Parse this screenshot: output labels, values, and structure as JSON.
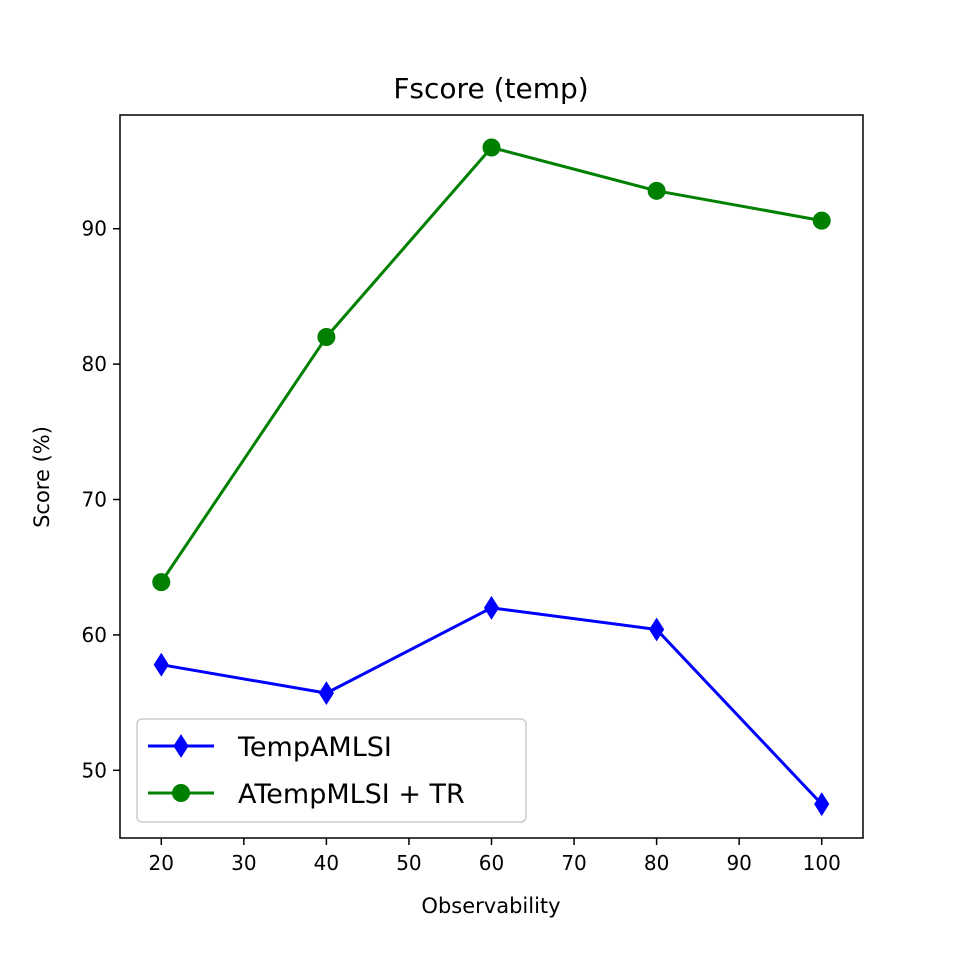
{
  "chart_data": {
    "type": "line",
    "title": "Fscore (temp)",
    "xlabel": "Observability",
    "ylabel": "Score (%)",
    "xlim": [
      15,
      105
    ],
    "ylim": [
      45,
      98.4
    ],
    "xticks": [
      20,
      30,
      40,
      50,
      60,
      70,
      80,
      90,
      100
    ],
    "yticks": [
      50,
      60,
      70,
      80,
      90
    ],
    "x": [
      20,
      40,
      60,
      80,
      100
    ],
    "grid": false,
    "legend_position": "lower-left",
    "series": [
      {
        "name": "TempAMLSI",
        "color": "#0000ff",
        "marker": "thin-diamond",
        "values": [
          57.8,
          55.7,
          62.0,
          60.4,
          47.5
        ]
      },
      {
        "name": "ATempMLSI + TR",
        "color": "#008000",
        "marker": "circle",
        "values": [
          63.9,
          82.0,
          96.0,
          92.8,
          90.6
        ]
      }
    ]
  }
}
